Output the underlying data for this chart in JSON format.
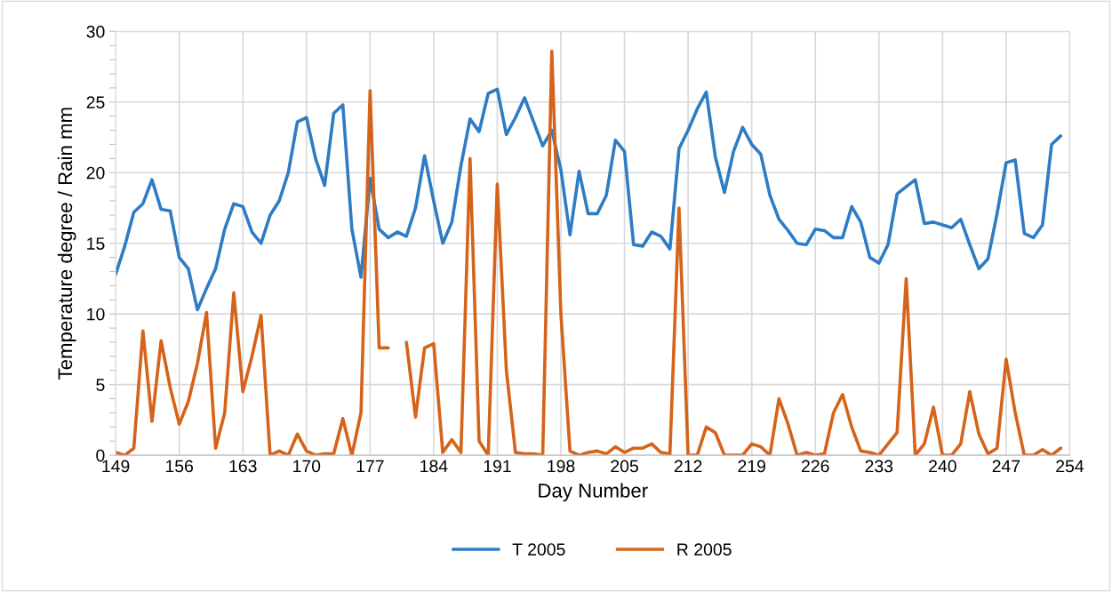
{
  "chart_data": {
    "type": "line",
    "xlabel": "Day Number",
    "ylabel": "Temperature degree / Rain mm",
    "x": [
      149,
      150,
      151,
      152,
      153,
      154,
      155,
      156,
      157,
      158,
      159,
      160,
      161,
      162,
      163,
      164,
      165,
      166,
      167,
      168,
      169,
      170,
      171,
      172,
      173,
      174,
      175,
      176,
      177,
      178,
      179,
      180,
      181,
      182,
      183,
      184,
      185,
      186,
      187,
      188,
      189,
      190,
      191,
      192,
      193,
      194,
      195,
      196,
      197,
      198,
      199,
      200,
      201,
      202,
      203,
      204,
      205,
      206,
      207,
      208,
      209,
      210,
      211,
      212,
      213,
      214,
      215,
      216,
      217,
      218,
      219,
      220,
      221,
      222,
      223,
      224,
      225,
      226,
      227,
      228,
      229,
      230,
      231,
      232,
      233,
      234,
      235,
      236,
      237,
      238,
      239,
      240,
      241,
      242,
      243,
      244,
      245,
      246,
      247,
      248,
      249,
      250,
      251,
      252,
      253
    ],
    "series": [
      {
        "name": "T 2005",
        "color": "#2e7cc4",
        "values": [
          12.8,
          14.8,
          17.2,
          17.8,
          19.5,
          17.4,
          17.3,
          14.0,
          13.2,
          10.3,
          11.8,
          13.2,
          16.0,
          17.8,
          17.6,
          15.8,
          15.0,
          17.0,
          18.0,
          20.0,
          23.6,
          23.9,
          21.0,
          19.1,
          24.2,
          24.8,
          16.0,
          12.6,
          19.6,
          16.0,
          15.4,
          15.8,
          15.5,
          17.5,
          21.2,
          18.0,
          15.0,
          16.5,
          20.5,
          23.8,
          22.9,
          25.6,
          25.9,
          22.7,
          23.9,
          25.3,
          23.6,
          21.9,
          23.0,
          20.2,
          15.6,
          20.1,
          17.1,
          17.1,
          18.4,
          22.3,
          21.5,
          14.9,
          14.8,
          15.8,
          15.5,
          14.6,
          21.7,
          23.0,
          24.5,
          25.7,
          21.1,
          18.6,
          21.5,
          23.2,
          22.0,
          21.3,
          18.4,
          16.7,
          15.9,
          15.0,
          14.9,
          16.0,
          15.9,
          15.4,
          15.4,
          17.6,
          16.5,
          14.0,
          13.6,
          14.9,
          18.5,
          19.0,
          19.5,
          16.4,
          16.5,
          16.3,
          16.1,
          16.7,
          14.9,
          13.2,
          13.9,
          17.1,
          20.7,
          20.9,
          15.7,
          15.4,
          16.3,
          22.0,
          22.6
        ]
      },
      {
        "name": "R 2005",
        "color": "#d5631a",
        "values": [
          0.2,
          0.0,
          0.5,
          8.8,
          2.4,
          8.1,
          4.8,
          2.2,
          3.8,
          6.5,
          10.1,
          0.5,
          3.0,
          11.5,
          4.5,
          7.0,
          9.9,
          0.0,
          0.3,
          0.0,
          1.5,
          0.3,
          0.0,
          0.1,
          0.1,
          2.6,
          0.0,
          3.0,
          25.8,
          7.6,
          7.6,
          null,
          8.0,
          2.7,
          7.6,
          7.9,
          0.2,
          1.1,
          0.2,
          21.0,
          1.0,
          0.0,
          19.2,
          6.0,
          0.2,
          0.1,
          0.1,
          0.0,
          28.6,
          10.0,
          0.3,
          0.0,
          0.2,
          0.3,
          0.1,
          0.6,
          0.2,
          0.5,
          0.5,
          0.8,
          0.2,
          0.1,
          17.5,
          0.0,
          0.0,
          2.0,
          1.6,
          0.0,
          0.0,
          0.0,
          0.8,
          0.6,
          0.0,
          4.0,
          2.2,
          0.0,
          0.2,
          0.0,
          0.1,
          3.0,
          4.3,
          2.0,
          0.3,
          0.2,
          0.0,
          0.8,
          1.6,
          12.5,
          0.0,
          0.8,
          3.4,
          0.0,
          0.0,
          0.8,
          4.5,
          1.5,
          0.1,
          0.5,
          6.8,
          3.0,
          0.0,
          0.0,
          0.4,
          0.0,
          0.5
        ]
      }
    ],
    "xlim": [
      149,
      254
    ],
    "xticks": [
      149,
      156,
      163,
      170,
      177,
      184,
      191,
      198,
      205,
      212,
      219,
      226,
      233,
      240,
      247,
      254
    ],
    "ylim": [
      0,
      30
    ],
    "yticks": [
      0,
      {
        "value": 1,
        "label": null
      },
      {
        "value": 2,
        "label": null
      },
      {
        "value": 3,
        "label": null
      },
      {
        "value": 4,
        "label": null
      },
      5,
      {
        "value": 6,
        "label": null
      },
      {
        "value": 7,
        "label": null
      },
      {
        "value": 8,
        "label": null
      },
      {
        "value": 9,
        "label": null
      },
      10,
      {
        "value": 11,
        "label": null
      },
      {
        "value": 12,
        "label": null
      },
      {
        "value": 13,
        "label": null
      },
      {
        "value": 14,
        "label": null
      },
      15,
      {
        "value": 16,
        "label": null
      },
      {
        "value": 17,
        "label": null
      },
      {
        "value": 18,
        "label": null
      },
      {
        "value": 19,
        "label": null
      },
      20,
      {
        "value": 21,
        "label": null
      },
      {
        "value": 22,
        "label": null
      },
      {
        "value": 23,
        "label": null
      },
      {
        "value": 24,
        "label": null
      },
      25,
      {
        "value": 26,
        "label": null
      },
      {
        "value": 27,
        "label": null
      },
      {
        "value": 28,
        "label": null
      },
      {
        "value": 29,
        "label": null
      },
      30
    ],
    "grid": true,
    "legend": "bottom",
    "marker": "none",
    "line_style": "solid"
  }
}
